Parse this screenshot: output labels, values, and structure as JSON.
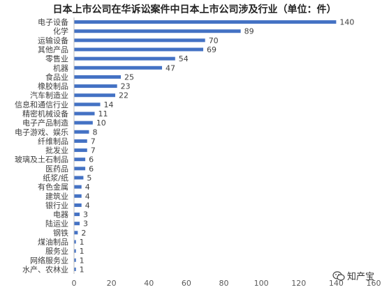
{
  "chart_data": {
    "type": "bar",
    "orientation": "horizontal",
    "title": "日本上市公司在华诉讼案件中日本上市公司涉及行业（单位：件）",
    "xlabel": "",
    "ylabel": "",
    "xlim": [
      0,
      160
    ],
    "xticks": [
      0,
      20,
      40,
      60,
      80,
      100,
      120,
      140,
      160
    ],
    "categories": [
      "电子设备",
      "化学",
      "运输设备",
      "其他产品",
      "零售业",
      "机器",
      "食品业",
      "橡胶制品",
      "汽车制造业",
      "信息和通信行业",
      "精密机械设备",
      "电子产品制造",
      "电子游戏、娱乐",
      "纤维制品",
      "批发业",
      "玻璃及土石制品",
      "医药品",
      "纸浆/纸",
      "有色金属",
      "建筑业",
      "银行业",
      "电器",
      "陆运业",
      "钢铁",
      "煤油制品",
      "服务业",
      "网络服务业",
      "水产、农林业"
    ],
    "values": [
      140,
      89,
      70,
      69,
      54,
      47,
      25,
      23,
      22,
      14,
      11,
      10,
      8,
      7,
      7,
      6,
      6,
      5,
      4,
      4,
      4,
      3,
      3,
      2,
      1,
      1,
      1,
      1
    ],
    "bar_color": "#4472c4",
    "grid": false,
    "legend": "none"
  },
  "watermark": {
    "text": "知产宝",
    "icon": "wechat-icon"
  }
}
